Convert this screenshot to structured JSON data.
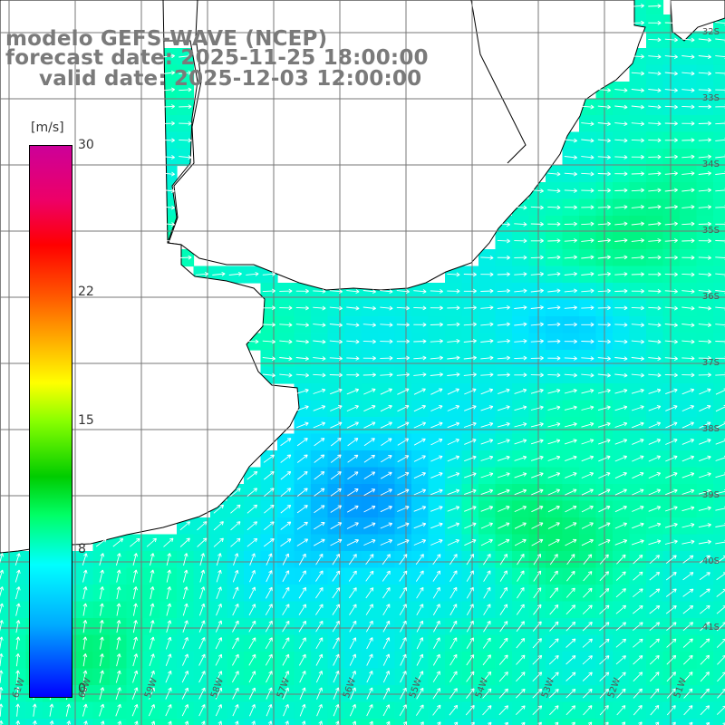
{
  "title": {
    "line1": "modelo GEFS-WAVE (NCEP)",
    "line2": "forecast date: 2025-11-25 18:00:00",
    "line3": "valid date: 2025-12-03 12:00:00"
  },
  "colorbar": {
    "unit": "[m/s]",
    "min": 0,
    "max": 30,
    "ticks": [
      "30",
      "22",
      "15",
      "8",
      "0"
    ],
    "tick_values": [
      30,
      22,
      15,
      8,
      0
    ]
  },
  "lat_labels": [
    "32S",
    "33S",
    "34S",
    "35S",
    "36S",
    "37S",
    "38S",
    "39S",
    "40S",
    "41S"
  ],
  "lon_labels": [
    "61W",
    "60W",
    "59W",
    "58W",
    "57W",
    "56W",
    "55W",
    "54W",
    "53W",
    "52W",
    "51W"
  ],
  "colors": {
    "land": "#ffffff",
    "grid": "#777777",
    "coast": "#000000",
    "arrow": "#ffffff",
    "title": "#7a7a7a"
  }
}
